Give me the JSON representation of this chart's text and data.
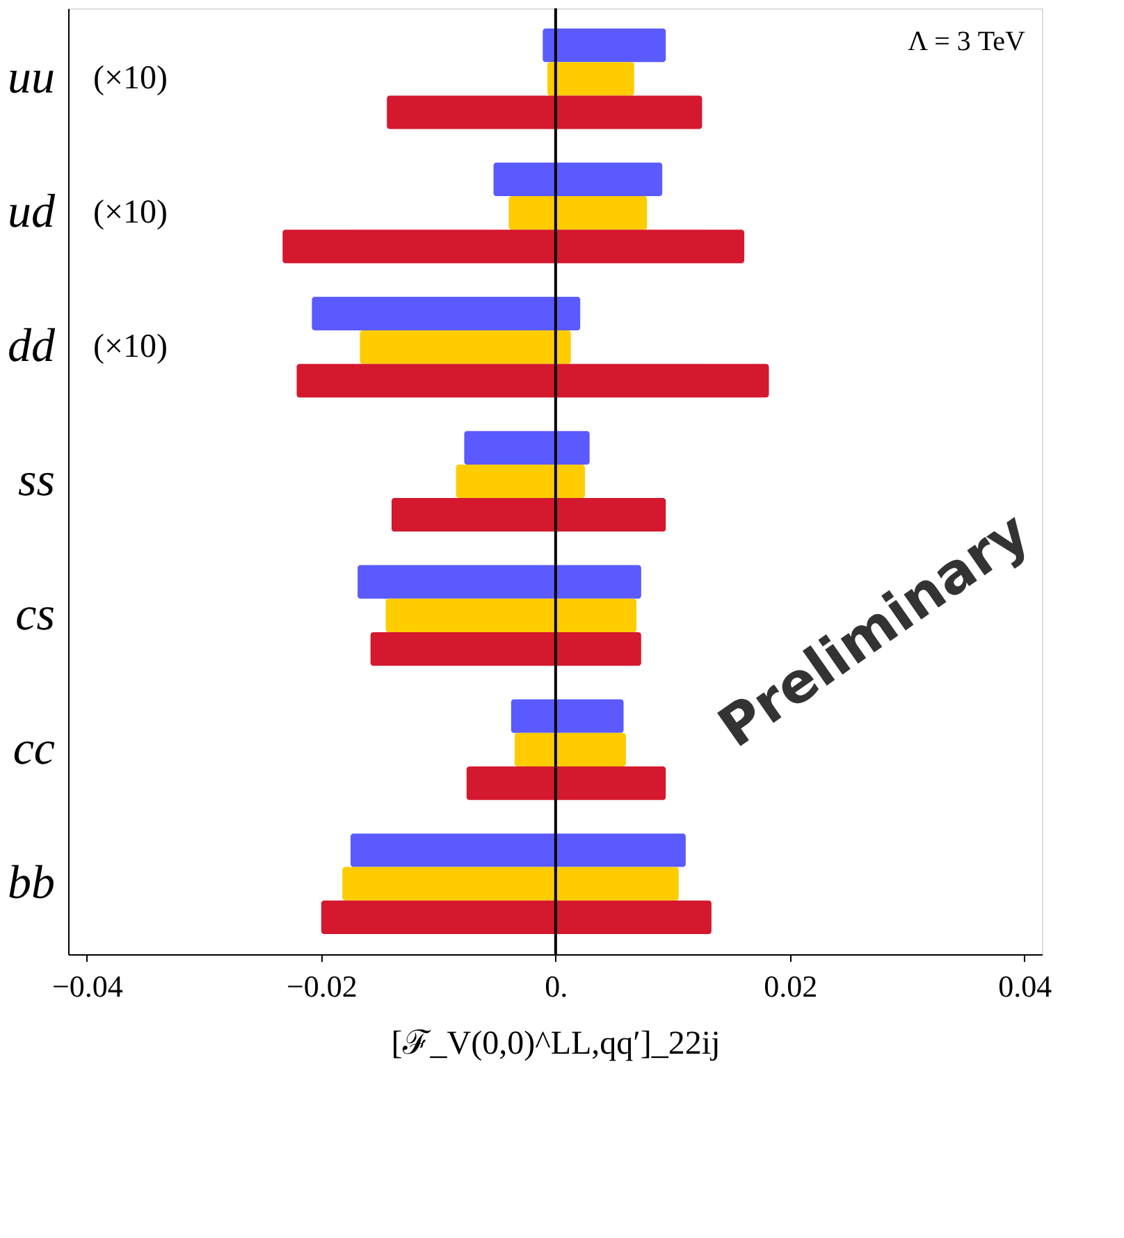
{
  "chart_data": {
    "type": "bar",
    "orientation": "horizontal",
    "categories": [
      "uu",
      "ud",
      "dd",
      "ss",
      "cs",
      "cc",
      "bb"
    ],
    "series": [
      {
        "color": "#5a5aff",
        "base": [
          -0.0011,
          -0.0053,
          -0.0208,
          -0.0078,
          -0.0169,
          -0.0038,
          -0.0175
        ],
        "values": [
          0.0105,
          0.0144,
          0.0229,
          0.0107,
          0.0242,
          0.0096,
          0.0286
        ]
      },
      {
        "color": "#ffcc00",
        "base": [
          -0.0007,
          -0.004,
          -0.0167,
          -0.0085,
          -0.0145,
          -0.0035,
          -0.0182
        ],
        "values": [
          0.0074,
          0.0118,
          0.018,
          0.011,
          0.0214,
          0.0095,
          0.0287
        ]
      },
      {
        "color": "#d4182e",
        "base": [
          -0.0144,
          -0.0233,
          -0.0221,
          -0.014,
          -0.0158,
          -0.0076,
          -0.02
        ],
        "values": [
          0.0269,
          0.0394,
          0.0403,
          0.0234,
          0.0231,
          0.017,
          0.0333
        ]
      }
    ],
    "xlim": [
      -0.0416,
      0.0415
    ],
    "xticks": [
      -0.04,
      -0.02,
      {
        "value": 0,
        "label": "0."
      },
      0.02,
      0.04
    ],
    "xlabel": "[ℱ_V(0,0)^LL,qq′]_22ij",
    "ref_lines": [
      {
        "axis": "x",
        "value": 0,
        "color": "#000000"
      }
    ],
    "annotations": [
      "Λ = 3 TeV",
      "Preliminary",
      "(×10)",
      "(×10)",
      "(×10)"
    ],
    "grid": false,
    "legend": false
  }
}
